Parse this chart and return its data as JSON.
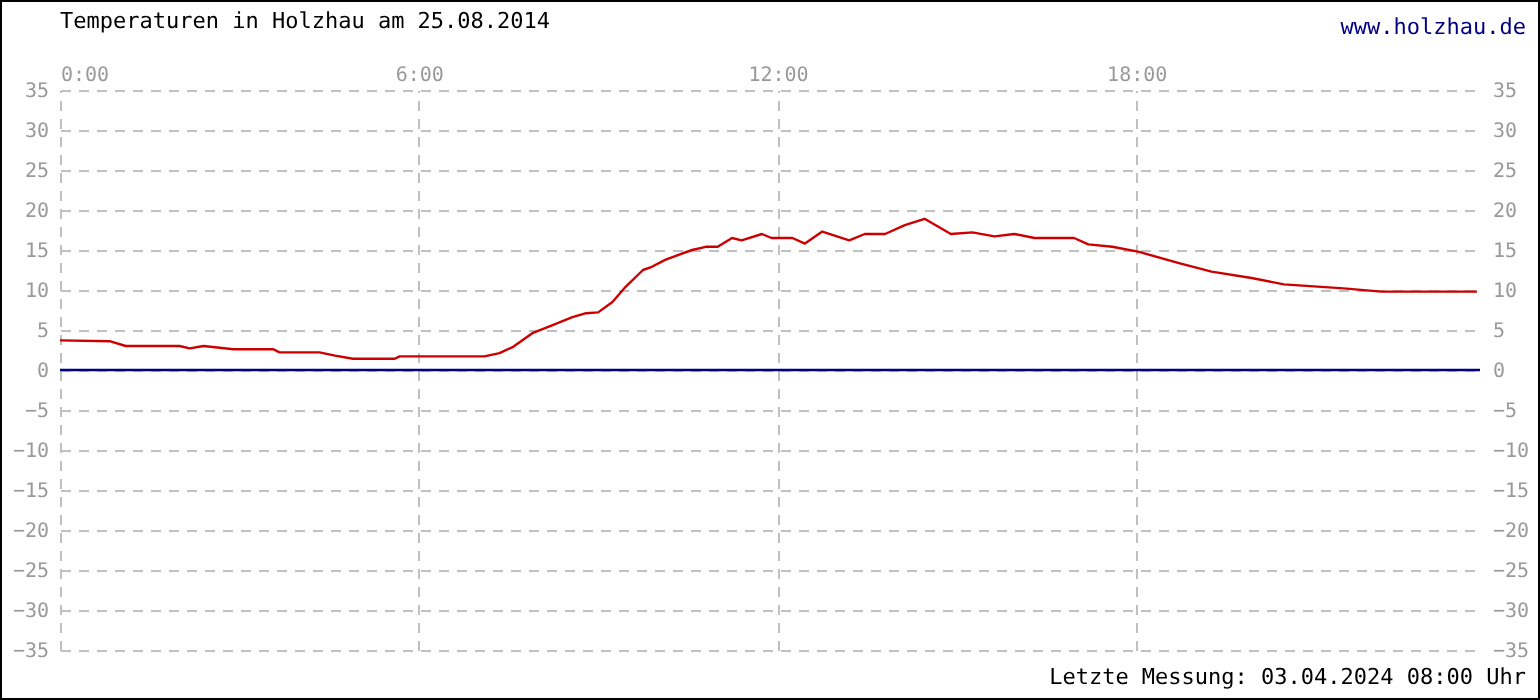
{
  "chart_data": {
    "type": "line",
    "title": "Temperaturen in Holzhau am 25.08.2014",
    "annotations": [
      "www.holzhau.de",
      "Letzte Messung: 03.04.2024 08:00 Uhr"
    ],
    "x": [
      0,
      0.83,
      1.1,
      2.0,
      2.17,
      2.4,
      2.9,
      3.57,
      3.67,
      4.34,
      4.6,
      4.9,
      5.6,
      5.68,
      7.1,
      7.35,
      7.58,
      7.9,
      8.24,
      8.57,
      8.8,
      9.0,
      9.24,
      9.46,
      9.75,
      9.9,
      10.13,
      10.57,
      10.8,
      11.0,
      11.24,
      11.4,
      11.74,
      11.9,
      12.25,
      12.46,
      12.75,
      13.2,
      13.46,
      13.8,
      14.13,
      14.46,
      14.9,
      15.26,
      15.63,
      15.96,
      16.3,
      16.96,
      17.2,
      17.6,
      18.03,
      18.7,
      19.26,
      19.93,
      20.47,
      21.47,
      22.1,
      23.7
    ],
    "series": [
      {
        "color": "#cc0000",
        "values": [
          3.7,
          3.6,
          3.0,
          3.0,
          2.7,
          3.0,
          2.6,
          2.6,
          2.2,
          2.2,
          1.8,
          1.4,
          1.4,
          1.7,
          1.7,
          2.1,
          2.9,
          4.6,
          5.6,
          6.6,
          7.1,
          7.2,
          8.5,
          10.4,
          12.5,
          12.9,
          13.8,
          15.0,
          15.4,
          15.4,
          16.5,
          16.2,
          17.0,
          16.5,
          16.5,
          15.8,
          17.3,
          16.2,
          17.0,
          17.0,
          18.1,
          18.9,
          17.0,
          17.2,
          16.7,
          17.0,
          16.5,
          16.5,
          15.7,
          15.4,
          14.8,
          13.4,
          12.3,
          11.5,
          10.7,
          10.2,
          9.8,
          9.8
        ]
      }
    ],
    "xlim": [
      0,
      23.75
    ],
    "xticks": [
      {
        "value": 0,
        "label": "0:00"
      },
      {
        "value": 6,
        "label": "6:00"
      },
      {
        "value": 12,
        "label": "12:00"
      },
      {
        "value": 18,
        "label": "18:00"
      }
    ],
    "ylim": [
      -35,
      35
    ],
    "yticks": [
      -35,
      -30,
      -25,
      -20,
      -15,
      -10,
      -5,
      0,
      5,
      10,
      15,
      20,
      25,
      30,
      35
    ],
    "y2lim": [
      -35,
      35
    ],
    "y2ticks": [
      -35,
      -30,
      -25,
      -20,
      -15,
      -10,
      -5,
      0,
      5,
      10,
      15,
      20,
      25,
      30,
      35
    ],
    "ref_lines": [
      {
        "axis": "y",
        "value": 0,
        "color": "#000080"
      }
    ],
    "grid": true,
    "line_style": "solid",
    "marker": "none"
  }
}
